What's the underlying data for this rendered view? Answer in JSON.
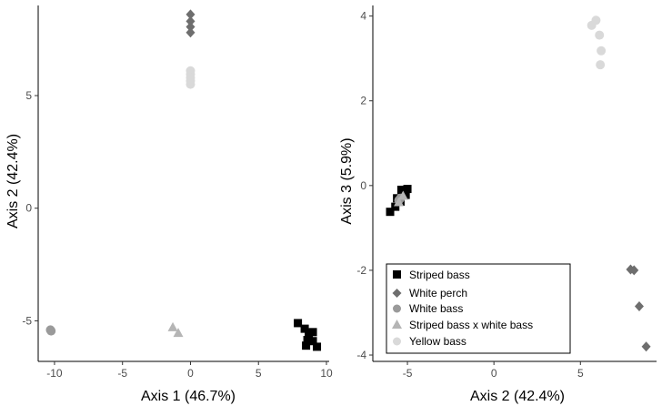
{
  "chart_data": [
    {
      "type": "scatter",
      "xlabel": "Axis 1 (46.7%)",
      "ylabel": "Axis 2 (42.4%)",
      "xlim": [
        -11.2,
        10.2
      ],
      "ylim": [
        -6.8,
        9.0
      ],
      "xticks": [
        -10,
        -5,
        0,
        5,
        10
      ],
      "yticks": [
        -5,
        0,
        5
      ],
      "grid": false,
      "series": [
        {
          "name": "Striped bass",
          "marker": "square",
          "color": "#000000",
          "points": [
            [
              7.9,
              -5.1
            ],
            [
              8.4,
              -5.35
            ],
            [
              8.7,
              -5.55
            ],
            [
              9.0,
              -5.5
            ],
            [
              8.6,
              -5.85
            ],
            [
              9.0,
              -5.9
            ],
            [
              8.5,
              -6.1
            ],
            [
              9.3,
              -6.15
            ]
          ]
        },
        {
          "name": "White perch",
          "marker": "diamond",
          "color": "#6e6e6e",
          "points": [
            [
              0.0,
              8.6
            ],
            [
              0.0,
              8.3
            ],
            [
              0.0,
              8.05
            ],
            [
              0.0,
              7.8
            ]
          ]
        },
        {
          "name": "White bass",
          "marker": "circle",
          "color": "#9a9a9a",
          "points": [
            [
              -10.3,
              -5.4
            ],
            [
              -10.25,
              -5.45
            ]
          ]
        },
        {
          "name": "Striped bass x white bass",
          "marker": "triangle",
          "color": "#b5b5b5",
          "points": [
            [
              -1.3,
              -5.3
            ],
            [
              -0.9,
              -5.55
            ]
          ]
        },
        {
          "name": "Yellow bass",
          "marker": "circle",
          "color": "#d9d9d9",
          "points": [
            [
              0.0,
              6.1
            ],
            [
              0.0,
              5.95
            ],
            [
              0.0,
              5.8
            ],
            [
              0.0,
              5.65
            ],
            [
              0.0,
              5.5
            ]
          ]
        }
      ]
    },
    {
      "type": "scatter",
      "xlabel": "Axis 2 (42.4%)",
      "ylabel": "Axis 3 (5.9%)",
      "xlim": [
        -7.0,
        9.4
      ],
      "ylim": [
        -4.15,
        4.25
      ],
      "xticks": [
        -5,
        0,
        5
      ],
      "yticks": [
        -4,
        -2,
        0,
        2,
        4
      ],
      "grid": false,
      "legend": "bottom-left",
      "series": [
        {
          "name": "Striped bass",
          "marker": "square",
          "color": "#000000",
          "points": [
            [
              -6.0,
              -0.62
            ],
            [
              -5.7,
              -0.5
            ],
            [
              -5.4,
              -0.38
            ],
            [
              -5.1,
              -0.22
            ],
            [
              -5.35,
              -0.1
            ],
            [
              -5.6,
              -0.3
            ],
            [
              -5.0,
              -0.08
            ]
          ]
        },
        {
          "name": "White perch",
          "marker": "diamond",
          "color": "#6e6e6e",
          "points": [
            [
              7.9,
              -1.98
            ],
            [
              8.1,
              -2.0
            ],
            [
              8.4,
              -2.85
            ],
            [
              8.8,
              -3.8
            ]
          ]
        },
        {
          "name": "White bass",
          "marker": "circle",
          "color": "#9a9a9a",
          "points": [
            [
              -5.5,
              -0.35
            ],
            [
              -5.4,
              -0.3
            ]
          ]
        },
        {
          "name": "Striped bass x white bass",
          "marker": "triangle",
          "color": "#b5b5b5",
          "points": [
            [
              -5.25,
              -0.25
            ],
            [
              -5.5,
              -0.4
            ]
          ]
        },
        {
          "name": "Yellow bass",
          "marker": "circle",
          "color": "#d9d9d9",
          "points": [
            [
              5.9,
              3.9
            ],
            [
              5.65,
              3.78
            ],
            [
              6.1,
              3.55
            ],
            [
              6.2,
              3.18
            ],
            [
              6.15,
              2.85
            ]
          ]
        }
      ]
    }
  ],
  "legend_labels": [
    "Striped bass",
    "White perch",
    "White bass",
    "Striped bass x white bass",
    "Yellow bass"
  ]
}
